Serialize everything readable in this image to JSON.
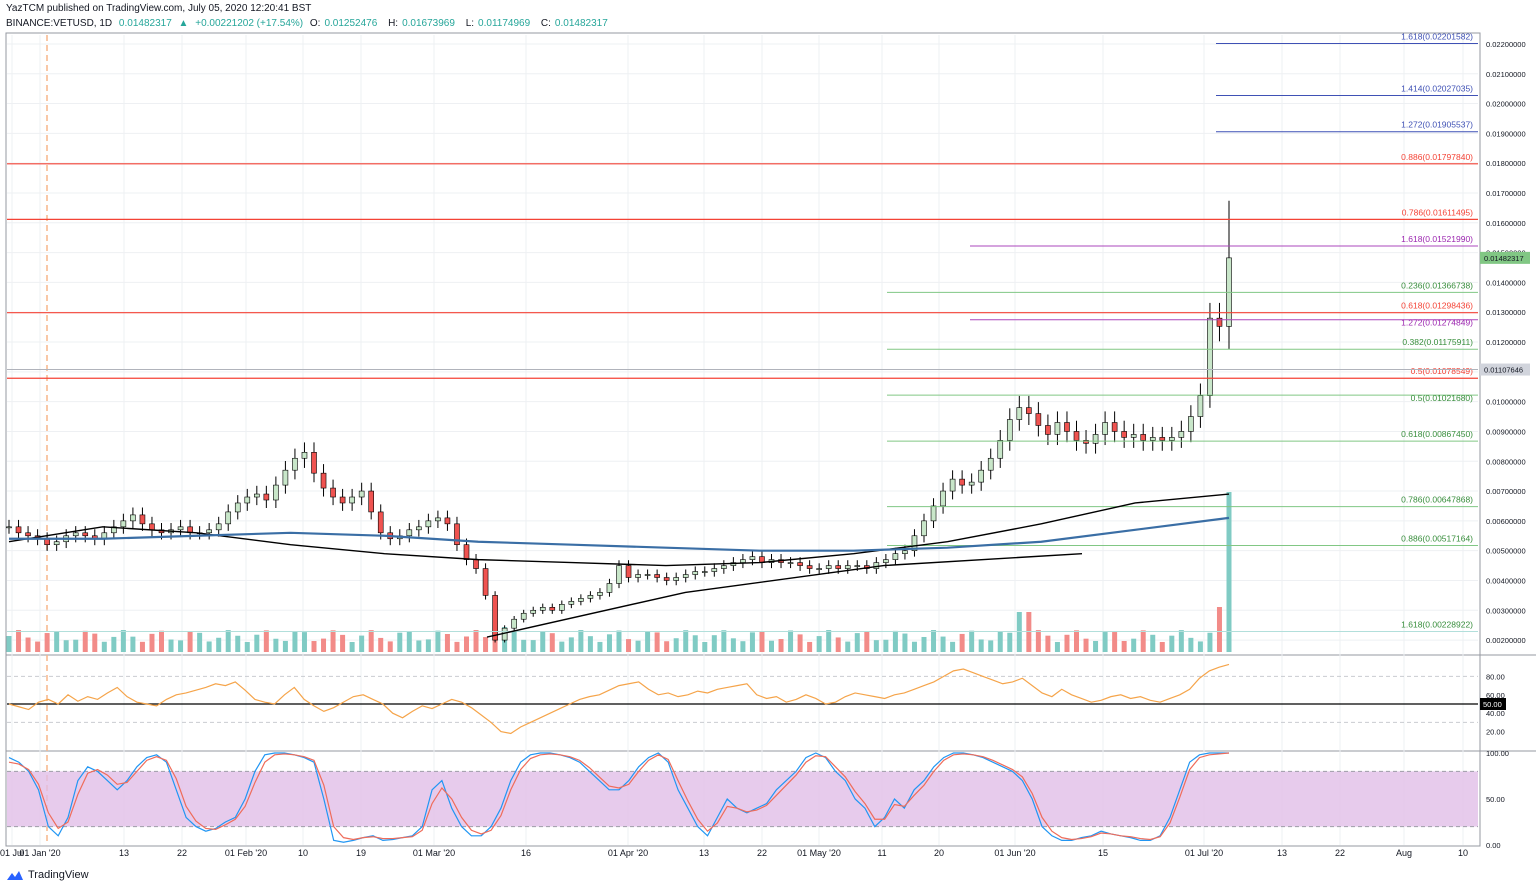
{
  "header": {
    "published": "YazTCM published on TradingView.com, July 05, 2020 12:20:41 BST",
    "symbol": "BINANCE:VETUSD, 1D",
    "last": "0.01482317",
    "change_arrow": "▲",
    "change": "+0.00221202 (+17.54%)",
    "open_label": "O:",
    "open": "0.01252476",
    "high_label": "H:",
    "high": "0.01673969",
    "low_label": "L:",
    "low": "0.01174969",
    "close_label": "C:",
    "close": "0.01482317"
  },
  "footer": {
    "brand": "TradingView",
    "icon": "tradingview-logo-icon"
  },
  "colors": {
    "up": "#26a69a",
    "down": "#ef5350",
    "candle_up_fill": "#c8e6c9",
    "candle_down_fill": "#ef5350",
    "resistance": "#f44336",
    "fib_green": "#81c784",
    "fib_blue": "#3f51b5",
    "fib_purple": "#ab47bc",
    "ma_black": "#000000",
    "ma_blue": "#3a6ea5",
    "rsi": "#f5a44a",
    "stoch_k": "#2196f3",
    "stoch_d": "#ef6c5a",
    "stoch_band": "#e1bee7"
  },
  "chart_data": [
    {
      "type": "candlestick",
      "title": "BINANCE:VETUSD, 1D",
      "ylim": [
        0.0015,
        0.0223
      ],
      "log_scale": false,
      "grid": true,
      "y_ticks": [
        "0.02200000",
        "0.02100000",
        "0.02000000",
        "0.01900000",
        "0.01800000",
        "0.01700000",
        "0.01600000",
        "0.01500000",
        "0.01400000",
        "0.01300000",
        "0.01200000",
        "0.01100000",
        "0.01000000",
        "0.00900000",
        "0.00800000",
        "0.00700000",
        "0.00600000",
        "0.00500000",
        "0.00400000",
        "0.00300000",
        "0.00200000"
      ],
      "x_ticks": [
        "01 Jul",
        "01 Jan '20",
        "13",
        "22",
        "01 Feb '20",
        "10",
        "19",
        "01 Mar '20",
        "16",
        "01 Apr '20",
        "13",
        "22",
        "01 May '20",
        "11",
        "20",
        "01 Jun '20",
        "15",
        "01 Jul '20",
        "13",
        "22",
        "Aug",
        "10"
      ],
      "price_labels": [
        {
          "text": "0.01482317",
          "value": 0.01482317,
          "style": "green"
        },
        {
          "text": "0.01107646",
          "value": 0.01107646,
          "style": "gray"
        }
      ],
      "horizontal_levels": [
        {
          "label": "0.886(0.01797840)",
          "value": 0.0179784,
          "color": "red",
          "full_width": true
        },
        {
          "label": "0.786(0.01611495)",
          "value": 0.01611495,
          "color": "red",
          "full_width": true
        },
        {
          "label": "0.618(0.01298436)",
          "value": 0.01298436,
          "color": "red",
          "full_width": true
        },
        {
          "label": "0.5(0.01078549)",
          "value": 0.01078549,
          "color": "red",
          "full_width": true
        },
        {
          "label": "1.618(0.02201582)",
          "value": 0.02201582,
          "color": "blue"
        },
        {
          "label": "1.414(0.02027035)",
          "value": 0.02027035,
          "color": "blue"
        },
        {
          "label": "1.272(0.01905537)",
          "value": 0.01905537,
          "color": "blue"
        },
        {
          "label": "1.618(0.01521990)",
          "value": 0.0152199,
          "color": "purple"
        },
        {
          "label": "1.272(0.01274849)",
          "value": 0.01274849,
          "color": "purple"
        },
        {
          "label": "0.236(0.01366738)",
          "value": 0.01366738,
          "color": "green"
        },
        {
          "label": "0.382(0.01175911)",
          "value": 0.01175911,
          "color": "green"
        },
        {
          "label": "0.5(0.01021680)",
          "value": 0.0102168,
          "color": "green"
        },
        {
          "label": "0.618(0.00867450)",
          "value": 0.0086745,
          "color": "green"
        },
        {
          "label": "0.786(0.00647868)",
          "value": 0.00647868,
          "color": "green"
        },
        {
          "label": "0.886(0.00517164)",
          "value": 0.00517164,
          "color": "green"
        },
        {
          "label": "1.618(0.00228922)",
          "value": 0.00228922,
          "color": "green"
        }
      ],
      "series": [
        {
          "name": "",
          "kind": "close",
          "values": [
            0.0058,
            0.0056,
            0.0055,
            0.0054,
            0.0052,
            0.0053,
            0.0055,
            0.0056,
            0.0055,
            0.0054,
            0.0056,
            0.0058,
            0.006,
            0.0062,
            0.0059,
            0.0057,
            0.0056,
            0.0057,
            0.0058,
            0.0056,
            0.0056,
            0.0057,
            0.0059,
            0.0063,
            0.0066,
            0.0068,
            0.0069,
            0.0067,
            0.0072,
            0.0077,
            0.0081,
            0.0083,
            0.0076,
            0.0071,
            0.0068,
            0.0066,
            0.0068,
            0.007,
            0.0063,
            0.0056,
            0.0054,
            0.0055,
            0.0057,
            0.0058,
            0.006,
            0.0061,
            0.0059,
            0.0052,
            0.0047,
            0.0044,
            0.0035,
            0.002,
            0.0024,
            0.0027,
            0.0029,
            0.003,
            0.0031,
            0.003,
            0.0032,
            0.0033,
            0.0034,
            0.0035,
            0.0036,
            0.0039,
            0.0045,
            0.0041,
            0.0042,
            0.0042,
            0.0041,
            0.004,
            0.0041,
            0.0042,
            0.0043,
            0.0043,
            0.0044,
            0.0045,
            0.0046,
            0.0047,
            0.0048,
            0.0046,
            0.0047,
            0.0046,
            0.0046,
            0.0045,
            0.0044,
            0.0044,
            0.0045,
            0.0044,
            0.0045,
            0.0045,
            0.0044,
            0.0046,
            0.0047,
            0.0049,
            0.005,
            0.0055,
            0.006,
            0.0065,
            0.007,
            0.0074,
            0.0072,
            0.0073,
            0.0077,
            0.0081,
            0.0087,
            0.0094,
            0.0098,
            0.0096,
            0.0092,
            0.0089,
            0.0093,
            0.009,
            0.0087,
            0.0086,
            0.0089,
            0.0093,
            0.009,
            0.0088,
            0.0089,
            0.0087,
            0.0088,
            0.0087,
            0.0088,
            0.009,
            0.0095,
            0.0102,
            0.0128,
            0.01252476,
            0.01482317
          ]
        },
        {
          "name": "",
          "kind": "ma_long",
          "values": [
            0.0053,
            0.0058,
            0.0056,
            0.0052,
            0.0049,
            0.0047,
            0.0046,
            0.0045,
            0.0046,
            0.0049,
            0.0053,
            0.0059,
            0.0066,
            0.0069
          ]
        },
        {
          "name": "",
          "kind": "ma_200",
          "values": [
            0.0054,
            0.0054,
            0.0055,
            0.0056,
            0.0055,
            0.0053,
            0.0052,
            0.0051,
            0.005,
            0.005,
            0.0051,
            0.0053,
            0.0057,
            0.0061
          ]
        },
        {
          "name": "",
          "kind": "trendline",
          "values": [
            0.0021,
            0.0036,
            0.0045,
            0.0049
          ]
        }
      ]
    },
    {
      "type": "line",
      "title": "",
      "ylim": [
        0,
        100
      ],
      "y_ticks": [
        "80.00",
        "60.00",
        "50.00",
        "40.00",
        "20.00"
      ],
      "reference_lines": [
        80,
        50,
        30
      ],
      "series": [
        {
          "name": "",
          "values": [
            50,
            47,
            44,
            52,
            55,
            50,
            60,
            53,
            58,
            55,
            62,
            68,
            58,
            52,
            50,
            48,
            55,
            60,
            62,
            65,
            68,
            72,
            70,
            74,
            65,
            55,
            52,
            50,
            60,
            68,
            55,
            48,
            42,
            46,
            52,
            58,
            60,
            55,
            50,
            40,
            35,
            42,
            48,
            45,
            50,
            55,
            52,
            46,
            38,
            30,
            20,
            18,
            25,
            30,
            35,
            40,
            45,
            50,
            55,
            58,
            60,
            65,
            70,
            72,
            74,
            66,
            60,
            62,
            58,
            60,
            64,
            62,
            66,
            68,
            70,
            72,
            60,
            56,
            58,
            52,
            55,
            60,
            56,
            50,
            52,
            58,
            62,
            60,
            58,
            56,
            60,
            62,
            66,
            70,
            74,
            80,
            86,
            88,
            84,
            80,
            76,
            72,
            74,
            78,
            70,
            62,
            58,
            66,
            60,
            56,
            52,
            54,
            58,
            60,
            56,
            58,
            54,
            52,
            56,
            60,
            66,
            78,
            86,
            90,
            93
          ]
        }
      ]
    },
    {
      "type": "line",
      "title": "",
      "ylim": [
        0,
        100
      ],
      "y_ticks": [
        "100.00",
        "50.00",
        "0.00"
      ],
      "band": [
        20,
        80
      ],
      "series": [
        {
          "name": "",
          "values": [
            95,
            90,
            80,
            60,
            20,
            10,
            30,
            70,
            85,
            80,
            70,
            60,
            70,
            85,
            95,
            98,
            90,
            60,
            30,
            20,
            15,
            18,
            25,
            30,
            50,
            80,
            98,
            100,
            100,
            98,
            95,
            90,
            50,
            5,
            3,
            5,
            8,
            10,
            5,
            6,
            8,
            10,
            20,
            60,
            70,
            40,
            20,
            10,
            10,
            20,
            40,
            70,
            90,
            98,
            100,
            100,
            98,
            95,
            90,
            80,
            70,
            60,
            60,
            70,
            85,
            95,
            100,
            90,
            60,
            40,
            20,
            10,
            30,
            50,
            40,
            35,
            40,
            45,
            60,
            70,
            80,
            95,
            100,
            95,
            80,
            70,
            50,
            40,
            20,
            30,
            50,
            40,
            60,
            70,
            85,
            95,
            100,
            100,
            98,
            95,
            90,
            85,
            80,
            70,
            50,
            20,
            10,
            5,
            5,
            8,
            10,
            15,
            12,
            10,
            8,
            5,
            5,
            10,
            30,
            60,
            90,
            98,
            100,
            100,
            100
          ]
        },
        {
          "name": "",
          "values": [
            90,
            88,
            82,
            66,
            35,
            18,
            25,
            55,
            78,
            82,
            76,
            66,
            68,
            80,
            92,
            96,
            92,
            72,
            42,
            26,
            18,
            17,
            22,
            28,
            42,
            68,
            90,
            98,
            99,
            98,
            96,
            92,
            65,
            20,
            8,
            6,
            8,
            9,
            7,
            7,
            8,
            9,
            16,
            45,
            62,
            50,
            30,
            16,
            12,
            16,
            32,
            60,
            82,
            94,
            98,
            99,
            98,
            96,
            92,
            84,
            74,
            64,
            62,
            66,
            80,
            92,
            98,
            93,
            70,
            48,
            28,
            15,
            24,
            42,
            40,
            36,
            38,
            43,
            54,
            65,
            76,
            90,
            97,
            96,
            85,
            74,
            58,
            45,
            28,
            28,
            44,
            42,
            54,
            65,
            80,
            92,
            98,
            99,
            98,
            96,
            92,
            87,
            82,
            74,
            56,
            30,
            15,
            8,
            6,
            7,
            9,
            13,
            12,
            10,
            9,
            7,
            6,
            9,
            24,
            52,
            82,
            95,
            98,
            99,
            100
          ]
        }
      ]
    }
  ]
}
